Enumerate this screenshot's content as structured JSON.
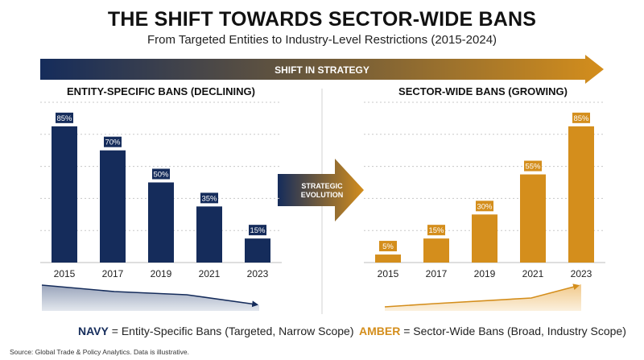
{
  "header": {
    "title": "THE SHIFT TOWARDS SECTOR-WIDE BANS",
    "subtitle": "From Targeted Entities to Industry-Level Restrictions (2015-2024)"
  },
  "banner": {
    "label": "SHIFT IN STRATEGY"
  },
  "center_arrow": {
    "line1": "STRATEGIC",
    "line2": "EVOLUTION"
  },
  "legend": {
    "navy_key": "NAVY",
    "navy_text": " = Entity-Specific Bans (Targeted, Narrow Scope)",
    "amber_key": "AMBER",
    "amber_text": " = Sector-Wide Bans (Broad, Industry Scope)"
  },
  "source": "Source: Global Trade & Policy Analytics. Data is illustrative.",
  "colors": {
    "navy": "#152c5b",
    "amber": "#d48e1c",
    "gridline": "#c8c8c8"
  },
  "chart_data": [
    {
      "type": "bar",
      "title": "ENTITY-SPECIFIC BANS (DECLINING)",
      "categories": [
        "2015",
        "2017",
        "2019",
        "2021",
        "2023"
      ],
      "values": [
        85,
        70,
        50,
        35,
        15
      ],
      "value_labels": [
        "85%",
        "70%",
        "50%",
        "35%",
        "15%"
      ],
      "ylim": [
        0,
        100
      ],
      "grid": true,
      "color": "#152c5b",
      "trend": "declining"
    },
    {
      "type": "bar",
      "title": "SECTOR-WIDE BANS (GROWING)",
      "categories": [
        "2015",
        "2017",
        "2019",
        "2021",
        "2023"
      ],
      "values": [
        5,
        15,
        30,
        55,
        85
      ],
      "value_labels": [
        "5%",
        "15%",
        "30%",
        "55%",
        "85%"
      ],
      "ylim": [
        0,
        100
      ],
      "grid": true,
      "color": "#d48e1c",
      "trend": "growing"
    }
  ]
}
